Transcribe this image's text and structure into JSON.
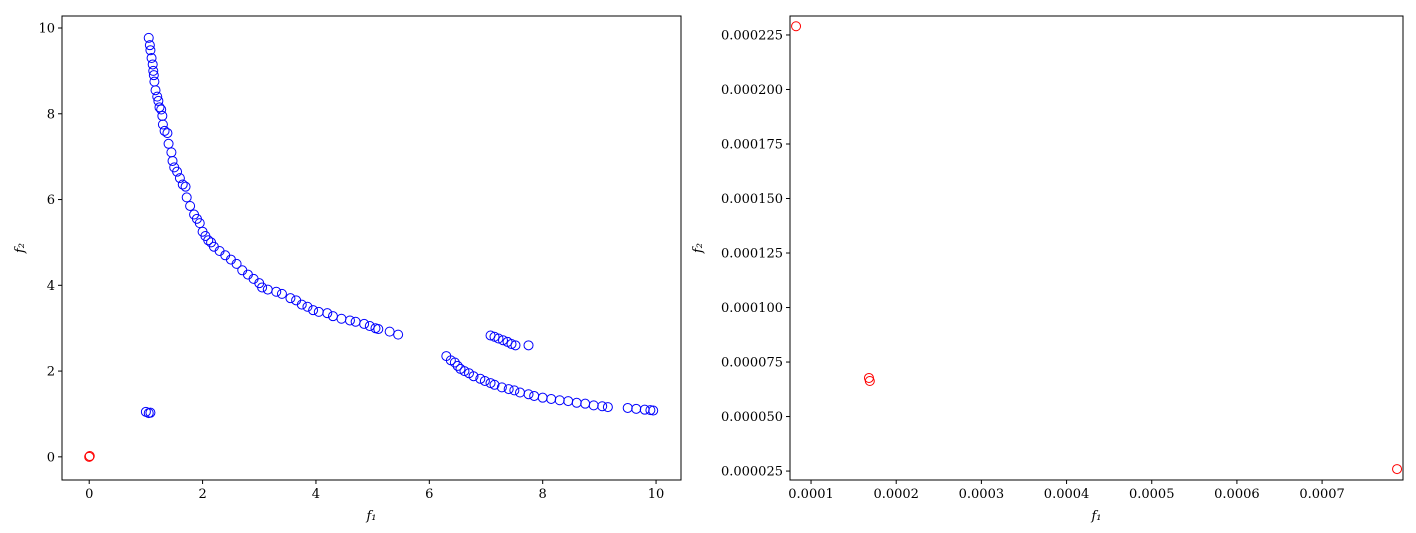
{
  "chart_data": [
    {
      "type": "scatter",
      "x_label": "f₁",
      "y_label": "f₂",
      "xlim": [
        -0.48,
        10.44
      ],
      "ylim": [
        -0.54,
        10.28
      ],
      "xticks": [
        0,
        2,
        4,
        6,
        8,
        10
      ],
      "yticks": [
        0,
        2,
        4,
        6,
        8,
        10
      ],
      "series": [
        {
          "color": "#0000ff",
          "x": [
            1.05,
            1.07,
            1.08,
            1.1,
            1.12,
            1.13,
            1.14,
            1.15,
            1.17,
            1.2,
            1.22,
            1.24,
            1.27,
            1.29,
            1.3,
            1.33,
            1.38,
            1.4,
            1.45,
            1.47,
            1.5,
            1.55,
            1.6,
            1.65,
            1.7,
            1.72,
            1.78,
            1.85,
            1.9,
            1.95,
            2.0,
            2.05,
            2.1,
            2.15,
            2.2,
            2.3,
            2.4,
            2.5,
            2.6,
            2.7,
            2.8,
            2.9,
            3.0,
            3.05,
            3.15,
            3.3,
            3.4,
            3.55,
            3.65,
            3.75,
            3.85,
            3.95,
            4.05,
            4.2,
            4.3,
            4.45,
            4.6,
            4.7,
            4.85,
            4.95,
            5.05,
            5.1,
            5.3,
            5.45,
            7.08,
            7.15,
            7.22,
            7.3,
            7.38,
            7.45,
            7.52,
            7.75,
            6.3,
            6.38,
            6.45,
            6.5,
            6.55,
            6.62,
            6.7,
            6.78,
            6.9,
            6.98,
            7.08,
            7.15,
            7.28,
            7.4,
            7.5,
            7.6,
            7.75,
            7.85,
            8.0,
            8.15,
            8.3,
            8.45,
            8.6,
            8.75,
            8.9,
            9.05,
            9.15,
            9.5,
            9.65,
            9.8,
            9.9,
            9.95,
            1.0,
            1.05,
            1.08
          ],
          "values": [
            9.77,
            9.6,
            9.48,
            9.3,
            9.15,
            9.0,
            8.9,
            8.75,
            8.55,
            8.4,
            8.3,
            8.15,
            8.1,
            7.95,
            7.75,
            7.6,
            7.55,
            7.3,
            7.1,
            6.9,
            6.75,
            6.65,
            6.5,
            6.35,
            6.3,
            6.05,
            5.85,
            5.65,
            5.55,
            5.45,
            5.25,
            5.15,
            5.05,
            5.0,
            4.9,
            4.8,
            4.7,
            4.6,
            4.5,
            4.35,
            4.25,
            4.15,
            4.05,
            3.95,
            3.9,
            3.85,
            3.8,
            3.7,
            3.65,
            3.55,
            3.5,
            3.42,
            3.38,
            3.35,
            3.28,
            3.22,
            3.18,
            3.15,
            3.1,
            3.05,
            3.0,
            2.98,
            2.92,
            2.85,
            2.83,
            2.8,
            2.76,
            2.72,
            2.68,
            2.63,
            2.6,
            2.6,
            2.35,
            2.25,
            2.2,
            2.12,
            2.05,
            2.0,
            1.95,
            1.88,
            1.82,
            1.77,
            1.72,
            1.68,
            1.62,
            1.58,
            1.55,
            1.5,
            1.46,
            1.42,
            1.38,
            1.35,
            1.32,
            1.3,
            1.26,
            1.24,
            1.2,
            1.18,
            1.16,
            1.14,
            1.12,
            1.1,
            1.09,
            1.08,
            1.05,
            1.02,
            1.03
          ]
        },
        {
          "color": "#ff0000",
          "x": [
            0.0,
            0.01
          ],
          "values": [
            0.0,
            0.02
          ]
        }
      ]
    },
    {
      "type": "scatter",
      "x_label": "f₁",
      "y_label": "f₂",
      "xlim": [
        7.53e-05,
        0.000795
      ],
      "ylim": [
        2.09e-05,
        0.0002337
      ],
      "xticks": [
        0.0001,
        0.0002,
        0.0003,
        0.0004,
        0.0005,
        0.0006,
        0.0007
      ],
      "yticks": [
        {
          "value": 2.5e-05,
          "label": "0.000025"
        },
        {
          "value": 5e-05,
          "label": "0.000050"
        },
        {
          "value": 7.5e-05,
          "label": "0.000075"
        },
        {
          "value": 0.0001,
          "label": "0.000100"
        },
        {
          "value": 0.000125,
          "label": "0.000125"
        },
        {
          "value": 0.00015,
          "label": "0.000150"
        },
        {
          "value": 0.000175,
          "label": "0.000175"
        },
        {
          "value": 0.0002,
          "label": "0.000200"
        },
        {
          "value": 0.000225,
          "label": "0.000225"
        }
      ],
      "series": [
        {
          "color": "#ff0000",
          "x": [
            8.24e-05,
            0.000168,
            0.000169,
            0.000788
          ],
          "values": [
            0.000229,
            6.77e-05,
            6.63e-05,
            2.59e-05
          ]
        }
      ]
    }
  ]
}
